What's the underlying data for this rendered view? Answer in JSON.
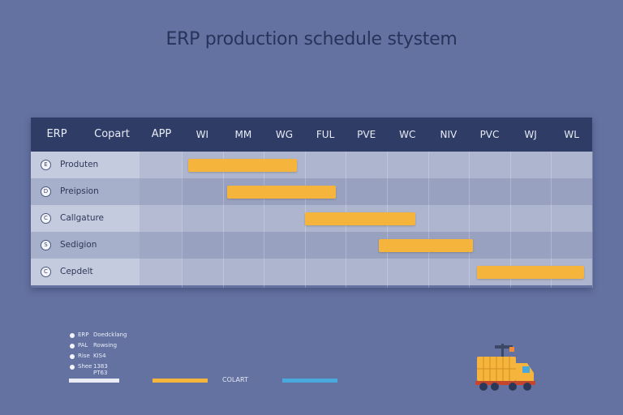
{
  "page": {
    "title": "ERP production schedule stystem"
  },
  "header": {
    "col_erp": "ERP",
    "col_copart": "Copart",
    "col_app": "APP",
    "periods": [
      "WI",
      "MM",
      "WG",
      "FUL",
      "PVE",
      "WC",
      "NIV",
      "PVC",
      "WJ",
      "WL"
    ]
  },
  "rows": [
    {
      "icon": "E",
      "label": "Produten",
      "bar_start_period": 0.15,
      "bar_end_period": 2.8
    },
    {
      "icon": "D",
      "label": "Preipsion",
      "bar_start_period": 1.1,
      "bar_end_period": 3.75
    },
    {
      "icon": "C",
      "label": "Callgature",
      "bar_start_period": 3.0,
      "bar_end_period": 5.7
    },
    {
      "icon": "S",
      "label": "Sedigion",
      "bar_start_period": 4.8,
      "bar_end_period": 7.1
    },
    {
      "icon": "C",
      "label": "Cepdelt",
      "bar_start_period": 7.2,
      "bar_end_period": 9.8
    }
  ],
  "legend": [
    {
      "key": "ERP",
      "value": "Doedcklang"
    },
    {
      "key": "PAL",
      "value": "Rowsing"
    },
    {
      "key": "Rise",
      "value": "KIS4"
    },
    {
      "key": "Shee",
      "value": "1383 PT63"
    }
  ],
  "footer": {
    "strip_label": "COLART"
  },
  "colors": {
    "background": "#6472a2",
    "header": "#2f3c66",
    "bar": "#f5b53c",
    "accent_blue": "#4aa9dc"
  }
}
